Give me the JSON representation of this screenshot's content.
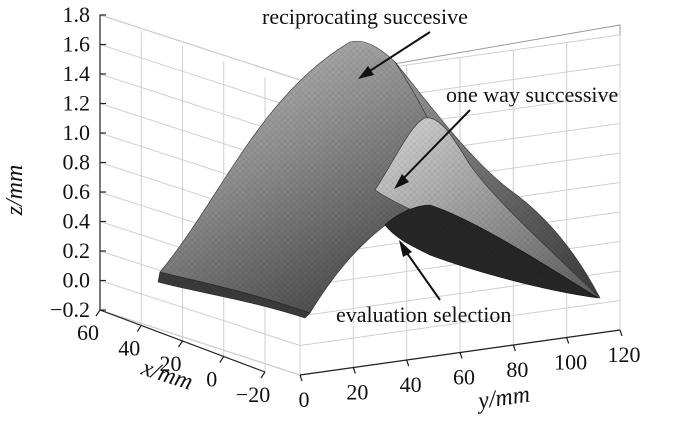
{
  "chart_data": {
    "type": "surface",
    "title": "",
    "xlabel": "x/mm",
    "ylabel": "y/mm",
    "zlabel": "z/mm",
    "x_ticks": [
      60,
      40,
      20,
      0,
      -20
    ],
    "y_ticks": [
      0,
      20,
      40,
      60,
      80,
      100,
      120
    ],
    "z_ticks": [
      -0.2,
      0.0,
      0.2,
      0.4,
      0.6,
      0.8,
      1.0,
      1.2,
      1.4,
      1.6,
      1.8
    ],
    "x_range": [
      -20,
      60
    ],
    "y_range": [
      0,
      120
    ],
    "z_range": [
      -0.2,
      1.8
    ],
    "grid": true,
    "series": [
      {
        "name": "reciprocating succesive",
        "peak_z": 1.6
      },
      {
        "name": "one way successive",
        "peak_z": 1.1
      },
      {
        "name": "evaluation selection",
        "peak_z": 0.25
      }
    ],
    "annotations": [
      "reciprocating succesive",
      "one way successive",
      "evaluation selection"
    ]
  },
  "colors": {
    "surface_dark": "#2a2a2a",
    "surface_mid": "#8a8a8a",
    "surface_light": "#d6d6d6",
    "grid": "#cfcfcf"
  }
}
